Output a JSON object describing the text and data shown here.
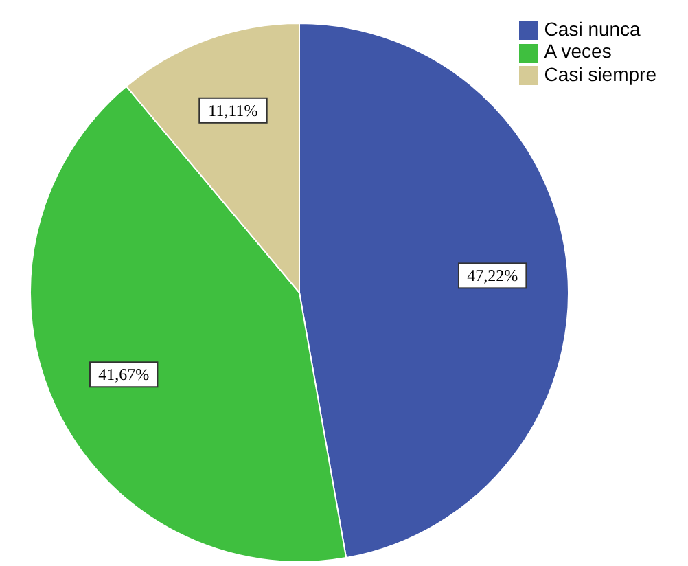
{
  "chart_data": {
    "type": "pie",
    "categories": [
      "Casi nunca",
      "A veces",
      "Casi siempre"
    ],
    "values": [
      47.22,
      41.67,
      11.11
    ],
    "colors": [
      "#3f56a8",
      "#3fbf3f",
      "#d6cb96"
    ],
    "value_labels": [
      "47,22%",
      "41,67%",
      "11,11%"
    ],
    "legend": "top right"
  }
}
